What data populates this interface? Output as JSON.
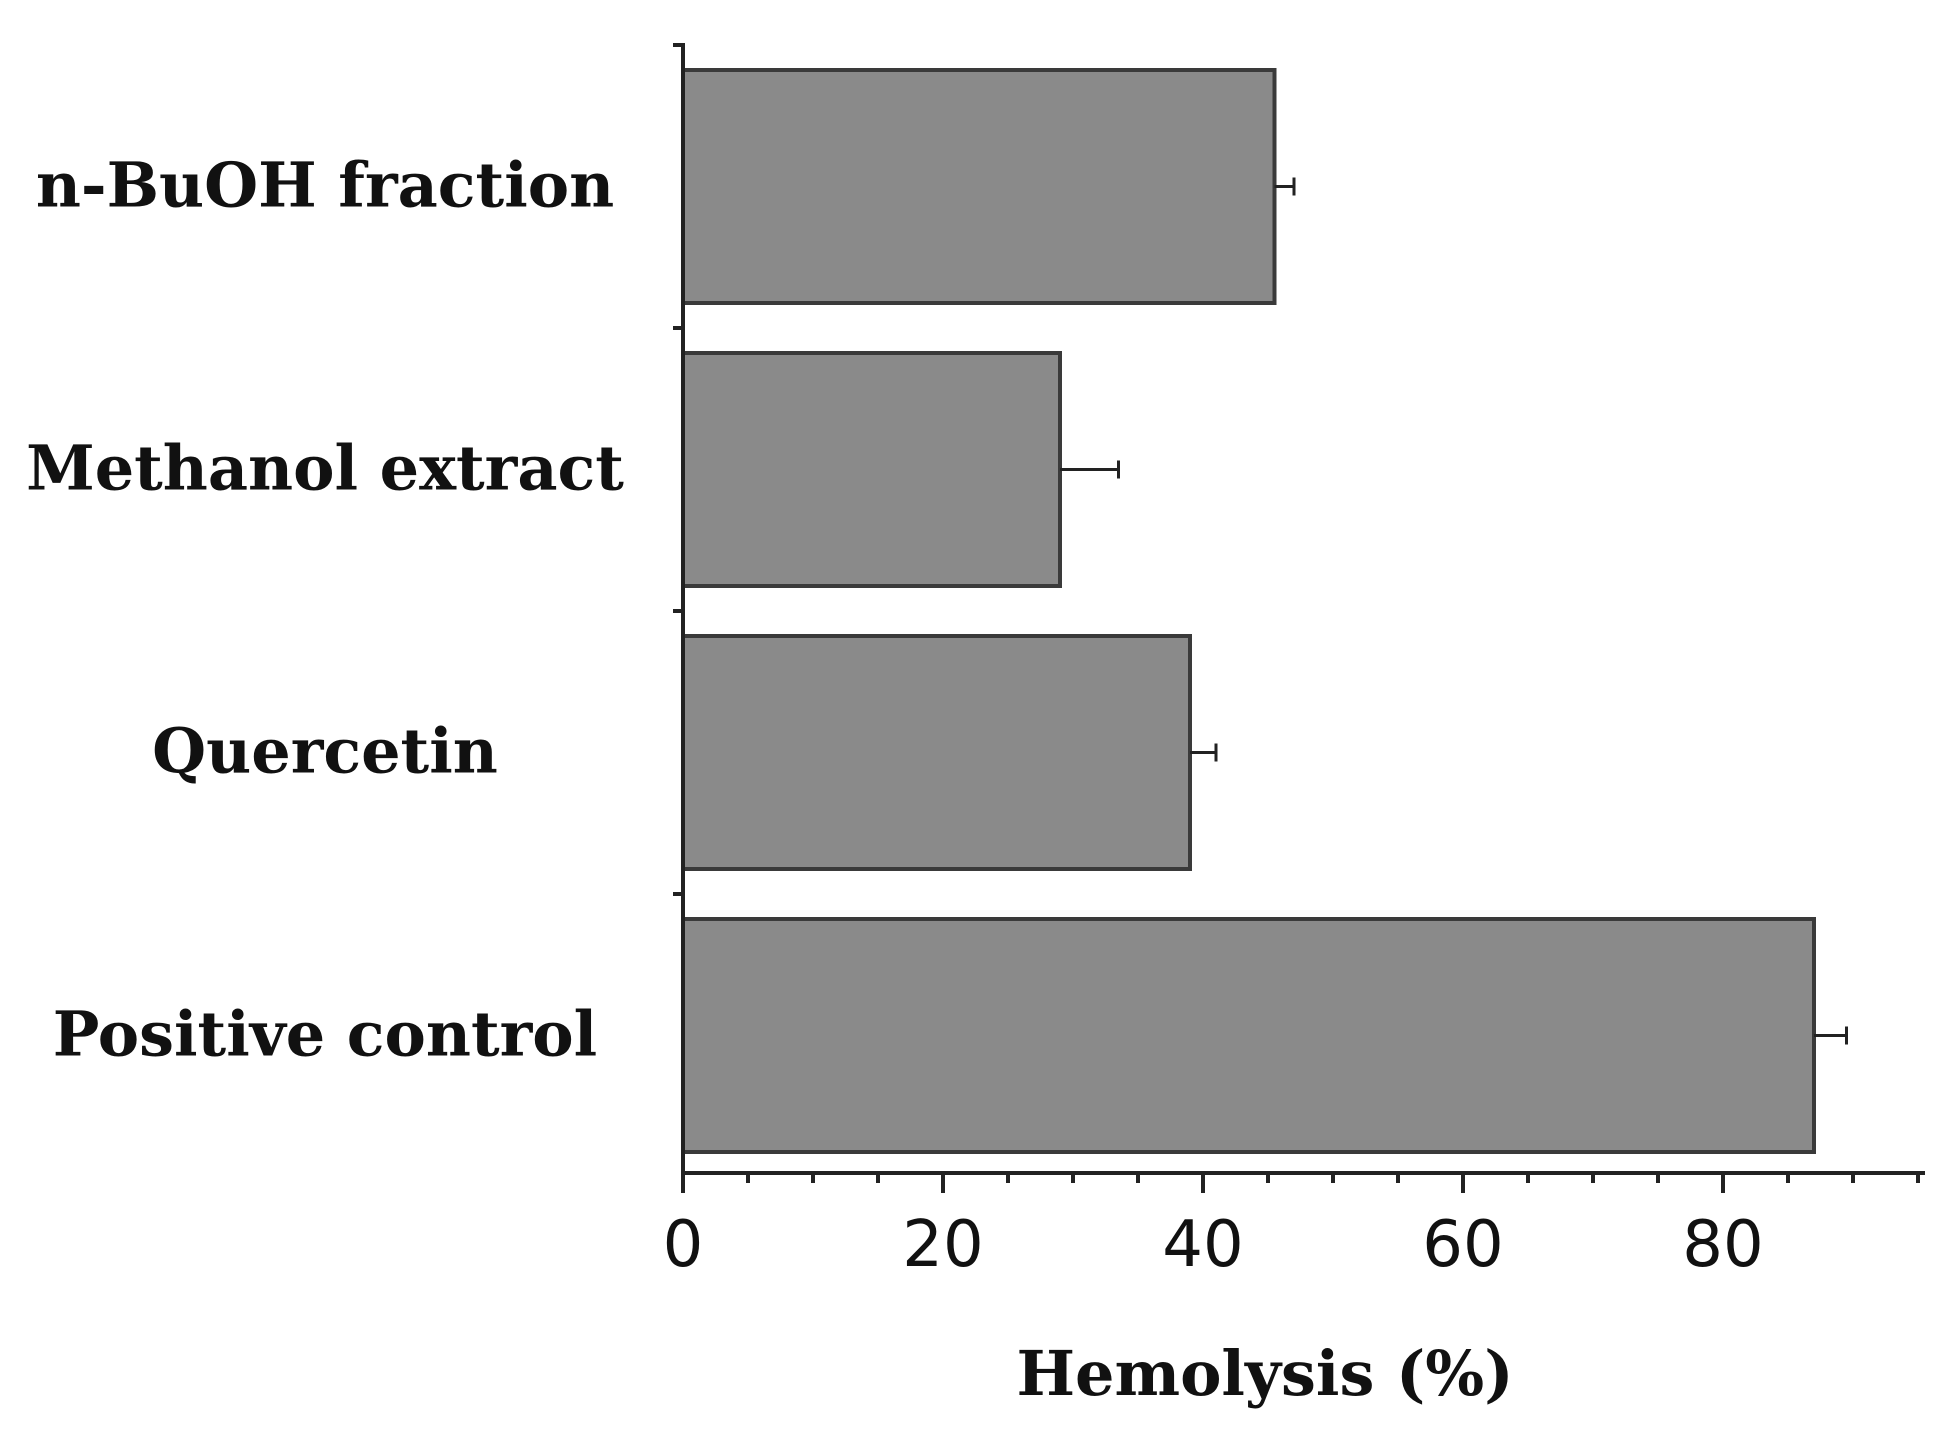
{
  "chart_data": {
    "type": "bar",
    "orientation": "horizontal",
    "categories": [
      "n-BuOH fraction",
      "Methanol extract",
      "Quercetin",
      "Positive control"
    ],
    "values": [
      45.5,
      29,
      39,
      87
    ],
    "errors": [
      1.5,
      4.5,
      2,
      2.5
    ],
    "xlabel": "Hemolysis (%)",
    "ylabel": "",
    "xlim": [
      0,
      95
    ],
    "xticks": [
      0,
      20,
      40,
      60,
      80
    ],
    "grid": false,
    "colors": {
      "bar": "#8a8a8a",
      "axis": "#222222"
    }
  }
}
